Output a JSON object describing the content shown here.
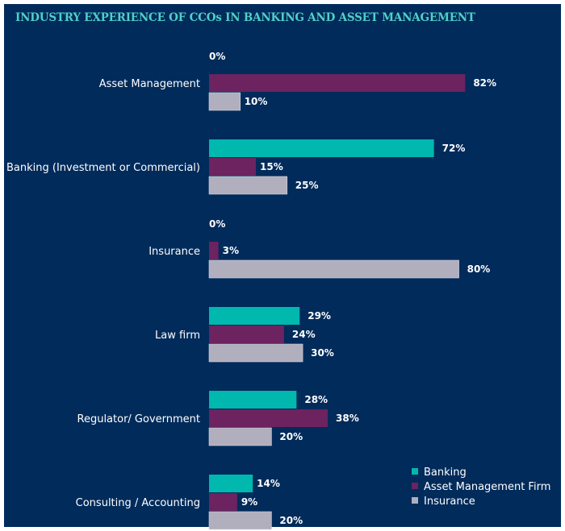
{
  "chart_data": {
    "type": "bar",
    "orientation": "horizontal",
    "title": "INDUSTRY EXPERIENCE OF CCOs IN BANKING AND ASSET MANAGEMENT",
    "categories": [
      "Asset Management",
      "Banking (Investment or Commercial)",
      "Insurance",
      "Law firm",
      "Regulator/ Government",
      "Consulting / Accounting"
    ],
    "series": [
      {
        "name": "Banking",
        "color": "#00b8ad",
        "values": [
          0,
          72,
          0,
          29,
          28,
          14
        ]
      },
      {
        "name": "Asset Management Firm",
        "color": "#6c2360",
        "values": [
          82,
          15,
          3,
          24,
          38,
          9
        ]
      },
      {
        "name": "Insurance",
        "color": "#b1aebd",
        "values": [
          10,
          25,
          80,
          30,
          20,
          20
        ]
      }
    ],
    "value_suffix": "%",
    "xlim": [
      0,
      100
    ],
    "grid": false,
    "legend": "bottom-right",
    "xlabel": "",
    "ylabel": ""
  }
}
